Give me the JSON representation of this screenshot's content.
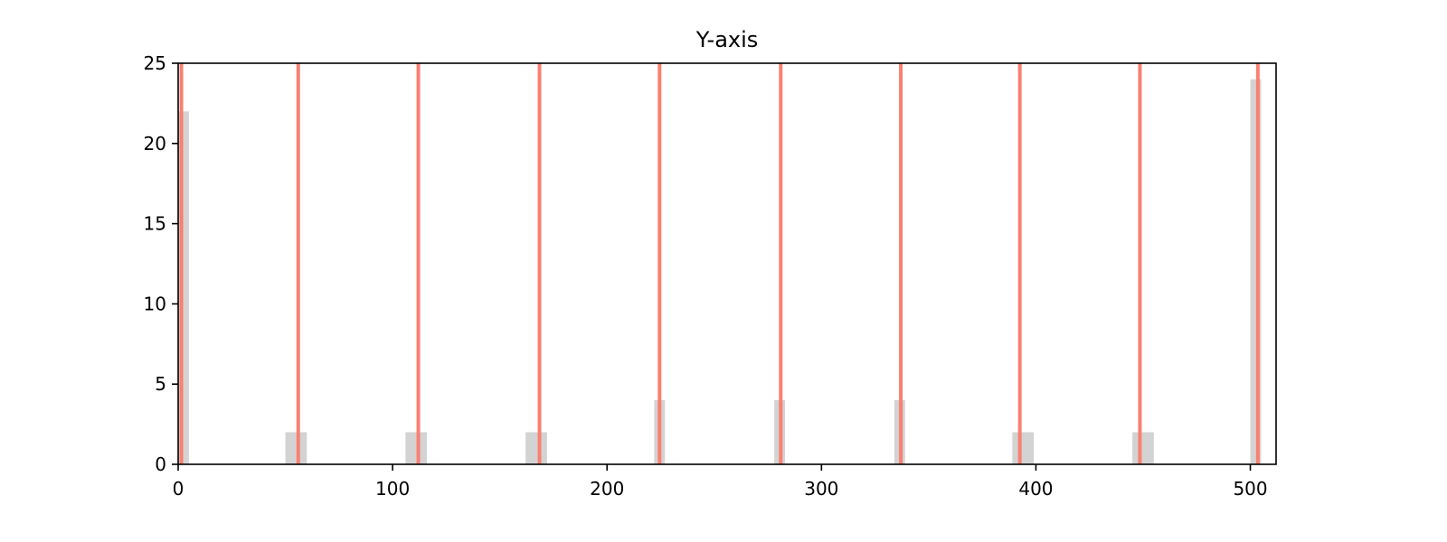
{
  "chart_data": {
    "type": "bar",
    "title": "Y-axis",
    "xlabel": "",
    "ylabel": "",
    "xlim": [
      0,
      512
    ],
    "ylim": [
      0,
      25
    ],
    "xticks": [
      0,
      100,
      200,
      300,
      400,
      500
    ],
    "yticks": [
      0,
      5,
      10,
      15,
      20,
      25
    ],
    "grid": false,
    "bars": [
      {
        "x_start": 0,
        "x_end": 5,
        "value": 22
      },
      {
        "x_start": 50,
        "x_end": 60,
        "value": 2
      },
      {
        "x_start": 106,
        "x_end": 116,
        "value": 2
      },
      {
        "x_start": 162,
        "x_end": 172,
        "value": 2
      },
      {
        "x_start": 222,
        "x_end": 227,
        "value": 4
      },
      {
        "x_start": 278,
        "x_end": 283,
        "value": 4
      },
      {
        "x_start": 334,
        "x_end": 339,
        "value": 4
      },
      {
        "x_start": 389,
        "x_end": 399,
        "value": 2
      },
      {
        "x_start": 445,
        "x_end": 455,
        "value": 2
      },
      {
        "x_start": 500,
        "x_end": 505,
        "value": 24
      }
    ],
    "vlines": [
      1.5,
      56,
      112,
      168.5,
      224.5,
      281,
      337,
      392.5,
      448.5,
      503.5
    ],
    "colors": {
      "bars": "#d3d3d3",
      "vlines": "#fa8072",
      "axes": "#000000"
    }
  }
}
